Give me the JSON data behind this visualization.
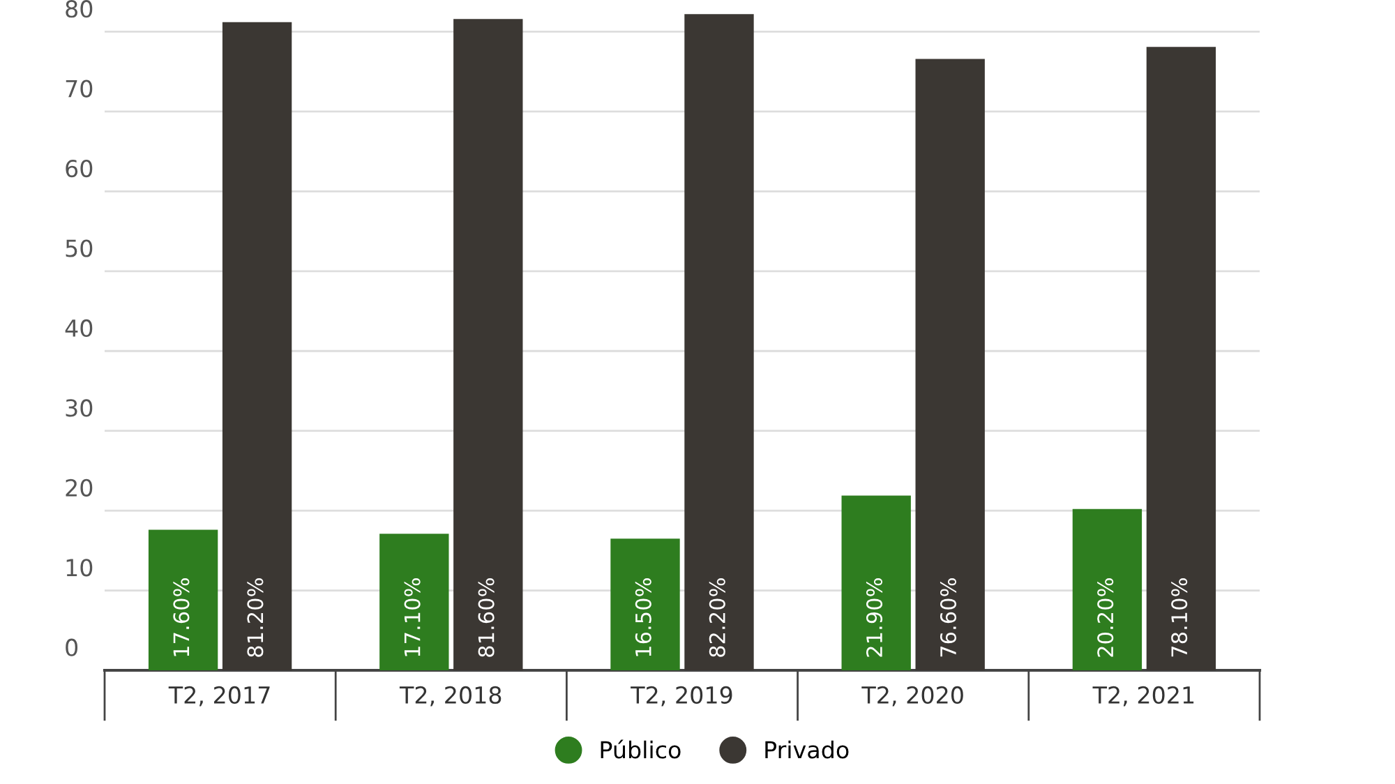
{
  "chart_data": {
    "type": "bar",
    "categories": [
      "T2, 2017",
      "T2, 2018",
      "T2, 2019",
      "T2, 2020",
      "T2, 2021"
    ],
    "series": [
      {
        "name": "Público",
        "color": "#2e7d1f",
        "values": [
          17.6,
          17.1,
          16.5,
          21.9,
          20.2
        ],
        "value_labels": [
          "17.60%",
          "17.10%",
          "16.50%",
          "21.90%",
          "20.20%"
        ]
      },
      {
        "name": "Privado",
        "color": "#3b3733",
        "values": [
          81.2,
          81.6,
          82.2,
          76.6,
          78.1
        ],
        "value_labels": [
          "81.20%",
          "81.60%",
          "82.20%",
          "76.60%",
          "78.10%"
        ]
      }
    ],
    "ylim": [
      0,
      82.5
    ],
    "yticks": [
      0,
      10,
      20,
      30,
      40,
      50,
      60,
      70,
      80
    ],
    "grid": "y",
    "legend": "bottom"
  }
}
